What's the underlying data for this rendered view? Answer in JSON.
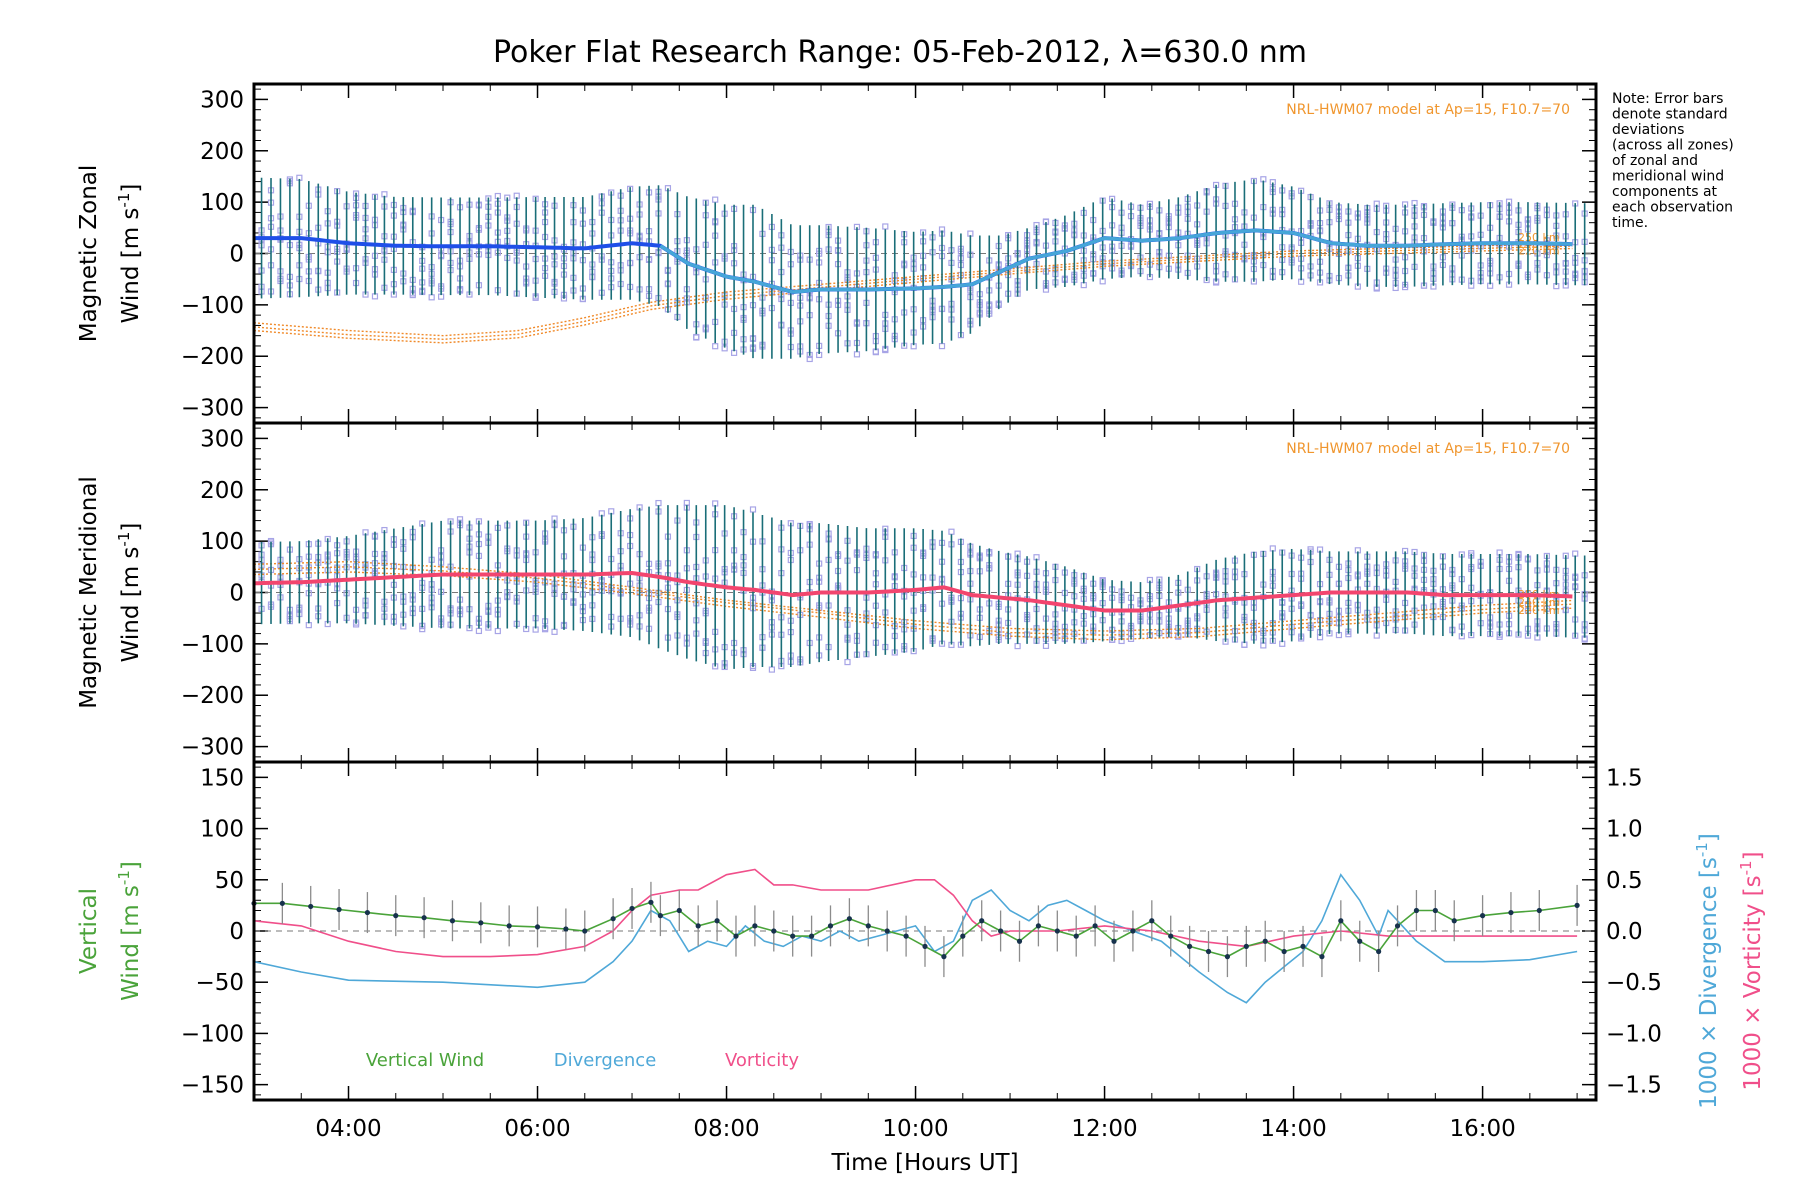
{
  "title": "Poker Flat Research Range: 05-Feb-2012, λ=630.0 nm",
  "note": [
    "Note: Error bars",
    "denote standard",
    "deviations",
    "(across all zones)",
    "of zonal and",
    "meridional wind",
    "components at",
    "each observation",
    "time."
  ],
  "colors": {
    "zonal_line": "#1f4fe8",
    "zonal_line2": "#46a6d8",
    "meridional_line": "#f2456e",
    "error_bar": "#1a6e78",
    "zone_square": "#a7a4e6",
    "model": "#f08a2a",
    "vertical_wind": "#4aa33a",
    "divergence": "#4fa8d8",
    "vorticity": "#f04f8a",
    "vertical_err": "#8c8c8c",
    "vertical_dot": "#17324d"
  },
  "chart_data": [
    {
      "type": "line",
      "panel": "zonal",
      "ylabel_line1": "Magnetic Zonal",
      "ylabel_line2": "Wind [m s",
      "ylabel_sup": "-1",
      "ylabel_close": "]",
      "ylim": [
        -330,
        330
      ],
      "yticks": [
        300,
        200,
        100,
        0,
        -100,
        -200,
        -300
      ],
      "ytick_labels": [
        "300",
        "200",
        "100",
        "0",
        "−100",
        "−200",
        "−300"
      ],
      "xlim": [
        3.0,
        17.2
      ],
      "model_label": "NRL-HWM07 model at Ap=15, F10.7=70",
      "model_alt_labels": [
        "250 km",
        "240 km",
        "220 km"
      ],
      "series": [
        {
          "name": "mean",
          "x": [
            3.0,
            3.5,
            4.0,
            4.5,
            5.0,
            5.5,
            6.0,
            6.5,
            7.0,
            7.3,
            7.6,
            8.0,
            8.3,
            8.7,
            9.0,
            9.5,
            10.0,
            10.3,
            10.6,
            10.9,
            11.2,
            11.6,
            12.0,
            12.4,
            12.8,
            13.2,
            13.6,
            14.0,
            14.4,
            14.8,
            15.2,
            15.6,
            16.0,
            16.5,
            17.0
          ],
          "y": [
            30,
            30,
            20,
            15,
            14,
            14,
            12,
            10,
            20,
            15,
            -20,
            -45,
            -55,
            -75,
            -70,
            -70,
            -68,
            -65,
            -60,
            -35,
            -10,
            5,
            30,
            25,
            30,
            40,
            45,
            40,
            20,
            15,
            15,
            18,
            20,
            20,
            18
          ]
        },
        {
          "name": "model 250 km",
          "x": [
            3.0,
            4.0,
            5.0,
            5.8,
            6.5,
            7.2,
            8.0,
            9.0,
            10.0,
            11.0,
            12.0,
            13.0,
            14.0,
            15.0,
            16.0,
            17.0
          ],
          "y": [
            -135,
            -150,
            -160,
            -150,
            -125,
            -95,
            -75,
            -60,
            -45,
            -30,
            -15,
            -5,
            5,
            10,
            15,
            20
          ]
        },
        {
          "name": "model 240 km",
          "x": [
            3.0,
            4.0,
            5.0,
            5.8,
            6.5,
            7.2,
            8.0,
            9.0,
            10.0,
            11.0,
            12.0,
            13.0,
            14.0,
            15.0,
            16.0,
            17.0
          ],
          "y": [
            -143,
            -158,
            -167,
            -157,
            -132,
            -102,
            -82,
            -66,
            -50,
            -35,
            -20,
            -10,
            0,
            5,
            10,
            15
          ]
        },
        {
          "name": "model 220 km",
          "x": [
            3.0,
            4.0,
            5.0,
            5.8,
            6.5,
            7.2,
            8.0,
            9.0,
            10.0,
            11.0,
            12.0,
            13.0,
            14.0,
            15.0,
            16.0,
            17.0
          ],
          "y": [
            -150,
            -165,
            -174,
            -164,
            -139,
            -109,
            -89,
            -72,
            -56,
            -40,
            -25,
            -15,
            -5,
            0,
            5,
            10
          ]
        }
      ],
      "error_bar_halfwidth": [
        118,
        115,
        100,
        95,
        95,
        95,
        98,
        100,
        110,
        118,
        130,
        140,
        150,
        130,
        125,
        120,
        110,
        110,
        95,
        70,
        60,
        70,
        80,
        70,
        80,
        95,
        100,
        90,
        80,
        80,
        80,
        80,
        80,
        80,
        80
      ]
    },
    {
      "type": "line",
      "panel": "meridional",
      "ylabel_line1": "Magnetic Meridional",
      "ylabel_line2": "Wind [m s",
      "ylabel_sup": "-1",
      "ylabel_close": "]",
      "ylim": [
        -330,
        330
      ],
      "yticks": [
        300,
        200,
        100,
        0,
        -100,
        -200,
        -300
      ],
      "ytick_labels": [
        "300",
        "200",
        "100",
        "0",
        "−100",
        "−200",
        "−300"
      ],
      "xlim": [
        3.0,
        17.2
      ],
      "model_label": "NRL-HWM07 model at Ap=15, F10.7=70",
      "model_alt_labels": [
        "250 km",
        "240 km",
        "220 km"
      ],
      "series": [
        {
          "name": "mean",
          "x": [
            3.0,
            3.5,
            4.0,
            4.5,
            5.0,
            5.5,
            6.0,
            6.5,
            7.0,
            7.3,
            7.6,
            8.0,
            8.3,
            8.7,
            9.0,
            9.5,
            10.0,
            10.3,
            10.6,
            10.9,
            11.2,
            11.6,
            12.0,
            12.4,
            12.8,
            13.2,
            13.6,
            14.0,
            14.4,
            14.8,
            15.2,
            15.6,
            16.0,
            16.5,
            17.0
          ],
          "y": [
            18,
            20,
            25,
            30,
            35,
            35,
            35,
            35,
            38,
            30,
            20,
            10,
            5,
            -5,
            0,
            0,
            5,
            10,
            -5,
            -10,
            -15,
            -25,
            -35,
            -35,
            -25,
            -15,
            -10,
            -5,
            0,
            0,
            0,
            -5,
            -5,
            -5,
            -8
          ]
        },
        {
          "name": "model 250 km",
          "x": [
            3.0,
            4.0,
            5.0,
            6.0,
            7.0,
            8.0,
            9.0,
            10.0,
            11.0,
            12.0,
            13.0,
            14.0,
            15.0,
            16.0,
            17.0
          ],
          "y": [
            55,
            60,
            50,
            35,
            10,
            -15,
            -35,
            -55,
            -70,
            -75,
            -70,
            -55,
            -40,
            -25,
            -15
          ]
        },
        {
          "name": "model 240 km",
          "x": [
            3.0,
            4.0,
            5.0,
            6.0,
            7.0,
            8.0,
            9.0,
            10.0,
            11.0,
            12.0,
            13.0,
            14.0,
            15.0,
            16.0,
            17.0
          ],
          "y": [
            45,
            50,
            42,
            28,
            5,
            -20,
            -40,
            -62,
            -78,
            -83,
            -78,
            -62,
            -48,
            -33,
            -22
          ]
        },
        {
          "name": "model 220 km",
          "x": [
            3.0,
            4.0,
            5.0,
            6.0,
            7.0,
            8.0,
            9.0,
            10.0,
            11.0,
            12.0,
            13.0,
            14.0,
            15.0,
            16.0,
            17.0
          ],
          "y": [
            35,
            40,
            33,
            20,
            -2,
            -27,
            -48,
            -70,
            -85,
            -92,
            -86,
            -70,
            -55,
            -40,
            -30
          ]
        }
      ],
      "error_bar_halfwidth": [
        80,
        80,
        85,
        95,
        105,
        105,
        105,
        110,
        125,
        140,
        150,
        160,
        150,
        140,
        135,
        125,
        120,
        110,
        100,
        90,
        85,
        75,
        60,
        55,
        60,
        80,
        90,
        90,
        80,
        80,
        80,
        80,
        80,
        80,
        80
      ]
    },
    {
      "type": "line",
      "panel": "vertical",
      "ylabel_line1": "Vertical",
      "ylabel_line2": "Wind [m s",
      "ylabel_sup": "-1",
      "ylabel_close": "]",
      "ylim": [
        -165,
        165
      ],
      "yticks": [
        150,
        100,
        50,
        0,
        -50,
        -100,
        -150
      ],
      "ytick_labels": [
        "150",
        "100",
        "50",
        "0",
        "−50",
        "−100",
        "−150"
      ],
      "y2ticks": [
        1.5,
        1.0,
        0.5,
        0.0,
        -0.5,
        -1.0,
        -1.5
      ],
      "y2tick_labels": [
        "1.5",
        "1.0",
        "0.5",
        "0.0",
        "−0.5",
        "−1.0",
        "−1.5"
      ],
      "y2label_div": "1000 × Divergence [s",
      "y2label_vort": "1000 × Vorticity [s",
      "y2label_sup": "-1",
      "y2label_close": "]",
      "xlim": [
        3.0,
        17.2
      ],
      "xticks": [
        4,
        6,
        8,
        10,
        12,
        14,
        16
      ],
      "xtick_labels": [
        "04:00",
        "06:00",
        "08:00",
        "10:00",
        "12:00",
        "14:00",
        "16:00"
      ],
      "xlabel": "Time [Hours UT]",
      "legend": [
        "Vertical Wind",
        "Divergence",
        "Vorticity"
      ],
      "series": [
        {
          "name": "Vertical Wind",
          "x": [
            3.0,
            3.3,
            3.6,
            3.9,
            4.2,
            4.5,
            4.8,
            5.1,
            5.4,
            5.7,
            6.0,
            6.3,
            6.5,
            6.8,
            7.0,
            7.2,
            7.3,
            7.5,
            7.7,
            7.9,
            8.1,
            8.3,
            8.5,
            8.7,
            8.9,
            9.1,
            9.3,
            9.5,
            9.7,
            9.9,
            10.1,
            10.3,
            10.5,
            10.7,
            10.9,
            11.1,
            11.3,
            11.5,
            11.7,
            11.9,
            12.1,
            12.3,
            12.5,
            12.7,
            12.9,
            13.1,
            13.3,
            13.5,
            13.7,
            13.9,
            14.1,
            14.3,
            14.5,
            14.7,
            14.9,
            15.1,
            15.3,
            15.5,
            15.7,
            16.0,
            16.3,
            16.6,
            17.0
          ],
          "y": [
            27,
            27,
            24,
            21,
            18,
            15,
            13,
            10,
            8,
            5,
            4,
            2,
            0,
            12,
            22,
            28,
            15,
            20,
            5,
            10,
            -5,
            5,
            0,
            -5,
            -5,
            5,
            12,
            5,
            0,
            -5,
            -15,
            -25,
            -5,
            10,
            0,
            -10,
            5,
            0,
            -5,
            5,
            -10,
            0,
            10,
            -5,
            -15,
            -20,
            -25,
            -15,
            -10,
            -20,
            -15,
            -25,
            10,
            -10,
            -20,
            5,
            20,
            20,
            10,
            15,
            18,
            20,
            25
          ]
        },
        {
          "name": "Divergence",
          "x": [
            3.0,
            3.5,
            4.0,
            5.0,
            6.0,
            6.5,
            6.8,
            7.0,
            7.2,
            7.4,
            7.6,
            7.8,
            8.0,
            8.2,
            8.4,
            8.6,
            8.8,
            9.0,
            9.2,
            9.4,
            9.6,
            9.8,
            10.0,
            10.2,
            10.4,
            10.6,
            10.8,
            11.0,
            11.2,
            11.4,
            11.6,
            11.8,
            12.0,
            12.3,
            12.6,
            13.0,
            13.3,
            13.5,
            13.7,
            13.9,
            14.1,
            14.3,
            14.5,
            14.7,
            14.9,
            15.0,
            15.3,
            15.6,
            16.0,
            16.5,
            17.0
          ],
          "y": [
            -0.3,
            -0.4,
            -0.48,
            -0.5,
            -0.55,
            -0.5,
            -0.3,
            -0.1,
            0.2,
            0.1,
            -0.2,
            -0.1,
            -0.15,
            0.05,
            -0.1,
            -0.15,
            -0.05,
            -0.1,
            0.0,
            -0.1,
            -0.05,
            0.0,
            0.05,
            -0.2,
            -0.1,
            0.3,
            0.4,
            0.2,
            0.1,
            0.25,
            0.3,
            0.2,
            0.1,
            0.0,
            -0.1,
            -0.4,
            -0.6,
            -0.7,
            -0.5,
            -0.35,
            -0.2,
            0.1,
            0.55,
            0.3,
            -0.05,
            0.2,
            -0.1,
            -0.3,
            -0.3,
            -0.28,
            -0.2
          ]
        },
        {
          "name": "Vorticity",
          "x": [
            3.0,
            3.5,
            4.0,
            4.5,
            5.0,
            5.5,
            6.0,
            6.5,
            6.8,
            7.0,
            7.2,
            7.5,
            7.7,
            8.0,
            8.3,
            8.5,
            8.7,
            9.0,
            9.5,
            10.0,
            10.2,
            10.4,
            10.6,
            10.8,
            11.0,
            11.5,
            12.0,
            12.5,
            13.0,
            13.5,
            14.0,
            14.5,
            15.0,
            15.5,
            16.0,
            16.5,
            17.0
          ],
          "y": [
            0.1,
            0.05,
            -0.1,
            -0.2,
            -0.25,
            -0.25,
            -0.23,
            -0.15,
            0.0,
            0.2,
            0.35,
            0.4,
            0.4,
            0.55,
            0.6,
            0.45,
            0.45,
            0.4,
            0.4,
            0.5,
            0.5,
            0.35,
            0.1,
            -0.05,
            0.0,
            0.0,
            0.05,
            0.0,
            -0.1,
            -0.15,
            -0.05,
            0.0,
            -0.05,
            -0.05,
            -0.05,
            -0.05,
            -0.05
          ]
        }
      ],
      "vertical_err": 20
    }
  ]
}
